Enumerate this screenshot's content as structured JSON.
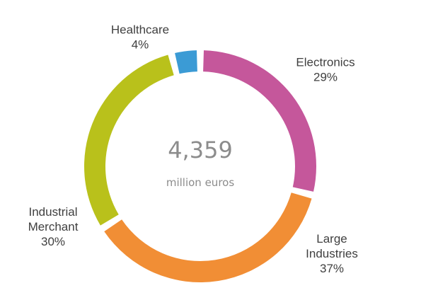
{
  "chart_data": {
    "type": "pie",
    "center_total": "4,359",
    "center_unit": "million euros",
    "slices": [
      {
        "name": "Electronics",
        "label_lines": [
          "Electronics"
        ],
        "value": 29,
        "value_label": "29%",
        "color": "#c5579b"
      },
      {
        "name": "Large Industries",
        "label_lines": [
          "Large",
          "Industries"
        ],
        "value": 37,
        "value_label": "37%",
        "color": "#f18e35"
      },
      {
        "name": "Industrial Merchant",
        "label_lines": [
          "Industrial",
          "Merchant"
        ],
        "value": 30,
        "value_label": "30%",
        "color": "#b9c11b"
      },
      {
        "name": "Healthcare",
        "label_lines": [
          "Healthcare"
        ],
        "value": 4,
        "value_label": "4%",
        "color": "#3b9bd5"
      }
    ]
  }
}
